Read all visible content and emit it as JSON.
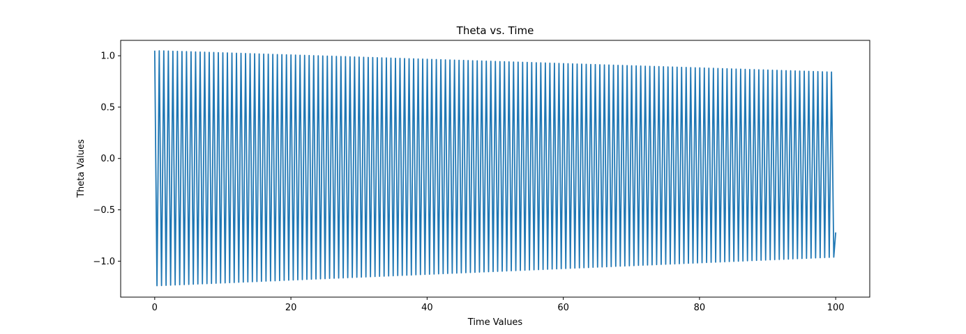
{
  "chart_data": {
    "type": "line",
    "title": "Theta vs. Time",
    "xlabel": "Time Values",
    "ylabel": "Theta Values",
    "xlim": [
      -5,
      105
    ],
    "ylim": [
      -1.35,
      1.15
    ],
    "xticks": [
      0,
      20,
      40,
      60,
      80,
      100
    ],
    "xtick_labels": [
      "0",
      "20",
      "40",
      "60",
      "80",
      "100"
    ],
    "yticks": [
      -1.0,
      -0.5,
      0.0,
      0.5,
      1.0
    ],
    "ytick_labels": [
      "−1.0",
      "−0.5",
      "0.0",
      "0.5",
      "1.0"
    ],
    "grid": false,
    "series": [
      {
        "color": "#1f77b4",
        "x_start": 0,
        "x_end": 100,
        "period": 0.667,
        "max_envelope": {
          "x": [
            0,
            100
          ],
          "y": [
            1.05,
            0.84
          ]
        },
        "min_envelope": {
          "x": [
            0,
            100
          ],
          "y": [
            -1.24,
            -0.96
          ]
        },
        "final_value": -0.72
      }
    ]
  }
}
